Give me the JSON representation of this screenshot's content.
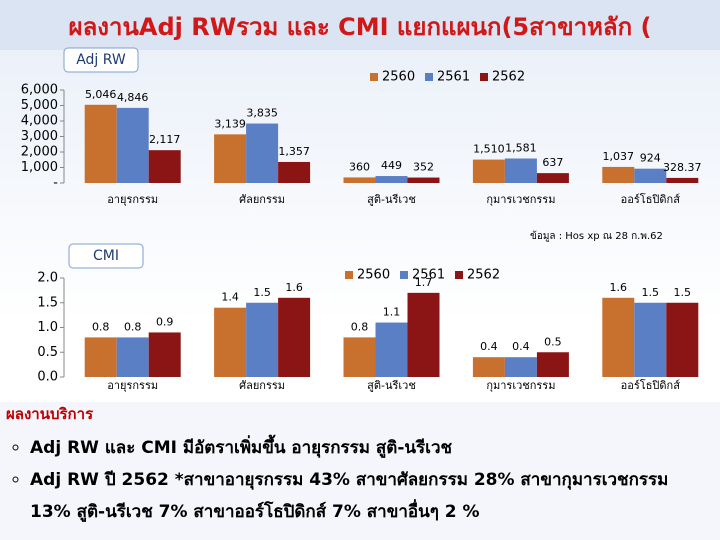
{
  "header": {
    "title": "ผลงานAdj RWรวม และ CMI แยกแผนก(5สาขาหลัก ("
  },
  "chart_data": [
    {
      "type": "bar",
      "title": "Adj RW",
      "categories": [
        "อายุรกรรม",
        "ศัลยกรรม",
        "สูติ-นรีเวช",
        "กุมารเวชกรรม",
        "ออร์โธปิดิกส์"
      ],
      "series": [
        {
          "name": "2560",
          "color": "#c8702e",
          "values": [
            5046,
            3139,
            360,
            1510,
            1037
          ],
          "value_labels": [
            "5,046",
            "3,139",
            "360",
            "1,510",
            "1,037"
          ]
        },
        {
          "name": "2561",
          "color": "#5b7fc4",
          "values": [
            4846,
            3835,
            449,
            1581,
            924
          ],
          "value_labels": [
            "4,846",
            "3,835",
            "449",
            "1,581",
            "924"
          ]
        },
        {
          "name": "2562",
          "color": "#8b1414",
          "values": [
            2117,
            1357,
            352,
            637,
            328.37
          ],
          "value_labels": [
            "2,117",
            "1,357",
            "352",
            "637",
            "328.37"
          ]
        }
      ],
      "ylim": [
        0,
        6000
      ],
      "yticks": [
        {
          "value": 0,
          "label": "-"
        },
        {
          "value": 1000,
          "label": "1,000"
        },
        {
          "value": 2000,
          "label": "2,000"
        },
        {
          "value": 3000,
          "label": "3,000"
        },
        {
          "value": 4000,
          "label": "4,000"
        },
        {
          "value": 5000,
          "label": "5,000"
        },
        {
          "value": 6000,
          "label": "6,000"
        }
      ],
      "source": "ข้อมูล : Hos xp ณ 28 ก.พ.62"
    },
    {
      "type": "bar",
      "title": "CMI",
      "categories": [
        "อายุรกรรม",
        "ศัลยกรรม",
        "สูติ-นรีเวช",
        "กุมารเวชกรรม",
        "ออร์โธปิดิกส์"
      ],
      "series": [
        {
          "name": "2560",
          "color": "#c8702e",
          "values": [
            0.8,
            1.4,
            0.8,
            0.4,
            1.6
          ]
        },
        {
          "name": "2561",
          "color": "#5b7fc4",
          "values": [
            0.8,
            1.5,
            1.1,
            0.4,
            1.5
          ]
        },
        {
          "name": "2562",
          "color": "#8b1414",
          "values": [
            0.9,
            1.6,
            1.7,
            0.5,
            1.5
          ]
        }
      ],
      "ylim": [
        0,
        2
      ],
      "yticks": [
        {
          "value": 0,
          "label": "0.0"
        },
        0.5,
        {
          "value": 1,
          "label": "1.0"
        },
        1.5,
        {
          "value": 2,
          "label": "2.0"
        }
      ],
      "source": "ข้อมูล : Hos xp ณ 28 ก.พ.62"
    }
  ],
  "notes": {
    "heading": "ผลงานบริการ",
    "bullets": [
      "Adj RW และ CMI มีอัตราเพิ่มขึ้น อายุรกรรม สูติ-นรีเวช",
      "Adj RW ปี 2562 *สาขาอายุรกรรม 43% สาขาศัลยกรรม 28% สาขากุมารเวชกรรม 13% สูติ-นรีเวช 7% สาขาออร์โธปิดิกส์ 7% สาขาอื่นๆ 2 %"
    ]
  }
}
